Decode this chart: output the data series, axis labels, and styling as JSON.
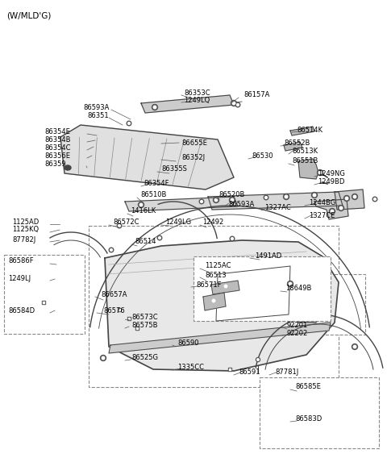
{
  "title": "(W/MLD'G)",
  "bg_color": "#ffffff",
  "line_color": "#444444",
  "text_color": "#000000",
  "fig_w": 4.8,
  "fig_h": 5.68,
  "dpi": 100,
  "labels": [
    [
      "86353C",
      228,
      115
    ],
    [
      "1249LQ",
      228,
      125
    ],
    [
      "86593A",
      103,
      133
    ],
    [
      "86351",
      108,
      143
    ],
    [
      "86354E",
      55,
      163
    ],
    [
      "86354B",
      55,
      173
    ],
    [
      "86655E",
      225,
      177
    ],
    [
      "86354C",
      55,
      183
    ],
    [
      "86356E",
      55,
      193
    ],
    [
      "86352J",
      225,
      195
    ],
    [
      "86359",
      55,
      203
    ],
    [
      "86355S",
      200,
      210
    ],
    [
      "86354F",
      178,
      228
    ],
    [
      "86514K",
      368,
      161
    ],
    [
      "86552B",
      352,
      178
    ],
    [
      "86513K",
      362,
      188
    ],
    [
      "86530",
      312,
      194
    ],
    [
      "86551B",
      362,
      200
    ],
    [
      "1249NG",
      394,
      216
    ],
    [
      "1249BD",
      394,
      226
    ],
    [
      "1244BG",
      383,
      252
    ],
    [
      "1327AC",
      328,
      258
    ],
    [
      "1327CE",
      383,
      268
    ],
    [
      "86510B",
      174,
      242
    ],
    [
      "86520B",
      271,
      241
    ],
    [
      "86593A",
      283,
      253
    ],
    [
      "1416LK",
      162,
      262
    ],
    [
      "86572C",
      140,
      276
    ],
    [
      "1249LG",
      205,
      276
    ],
    [
      "12492",
      251,
      276
    ],
    [
      "86514",
      167,
      300
    ],
    [
      "1125AD",
      15,
      275
    ],
    [
      "1125KQ",
      15,
      285
    ],
    [
      "87782J",
      15,
      297
    ],
    [
      "86586F",
      10,
      324
    ],
    [
      "1249LJ",
      10,
      345
    ],
    [
      "86584D",
      10,
      385
    ],
    [
      "1491AD",
      316,
      317
    ],
    [
      "1125AC",
      254,
      330
    ],
    [
      "86513",
      254,
      341
    ],
    [
      "86571F",
      243,
      353
    ],
    [
      "86657A",
      125,
      365
    ],
    [
      "86576",
      128,
      385
    ],
    [
      "86573C",
      163,
      393
    ],
    [
      "86575B",
      163,
      404
    ],
    [
      "86590",
      220,
      425
    ],
    [
      "86525G",
      163,
      444
    ],
    [
      "1335CC",
      220,
      456
    ],
    [
      "18649B",
      354,
      358
    ],
    [
      "92201",
      356,
      403
    ],
    [
      "92202",
      356,
      413
    ],
    [
      "86591",
      296,
      462
    ],
    [
      "87781J",
      341,
      462
    ],
    [
      "86585E",
      366,
      480
    ],
    [
      "86583D",
      366,
      520
    ],
    [
      "86157A",
      302,
      118
    ]
  ]
}
